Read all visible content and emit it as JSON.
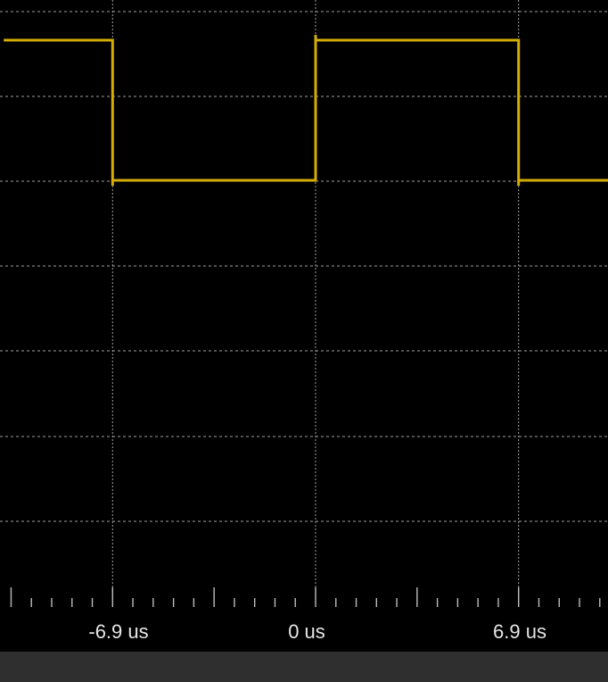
{
  "scope": {
    "colors": {
      "background": "#000000",
      "grid": "#bdbdbd",
      "trace": "#d4ad05",
      "bottom_bar": "#2f2f2f",
      "label": "#e6e6e6"
    },
    "timebase": {
      "unit": "us",
      "tick_labels": [
        "-6.9 us",
        "0 us",
        "6.9 us"
      ]
    }
  },
  "chart_data": {
    "type": "line",
    "title": "",
    "xlabel": "",
    "ylabel": "",
    "grid": true,
    "xlim": [
      -10.6,
      10.2
    ],
    "x_tick_values": [
      -6.9,
      0,
      6.9
    ],
    "x_tick_labels": [
      "-6.9 us",
      "0 us",
      "6.9 us"
    ],
    "series": [
      {
        "name": "",
        "color": "#d4ad05",
        "waveform": "square",
        "x": [
          -10.6,
          -6.9,
          -6.9,
          0.0,
          0.0,
          6.9,
          6.9,
          10.2
        ],
        "y": [
          1,
          1,
          0,
          0,
          1,
          1,
          0,
          0
        ]
      }
    ]
  }
}
